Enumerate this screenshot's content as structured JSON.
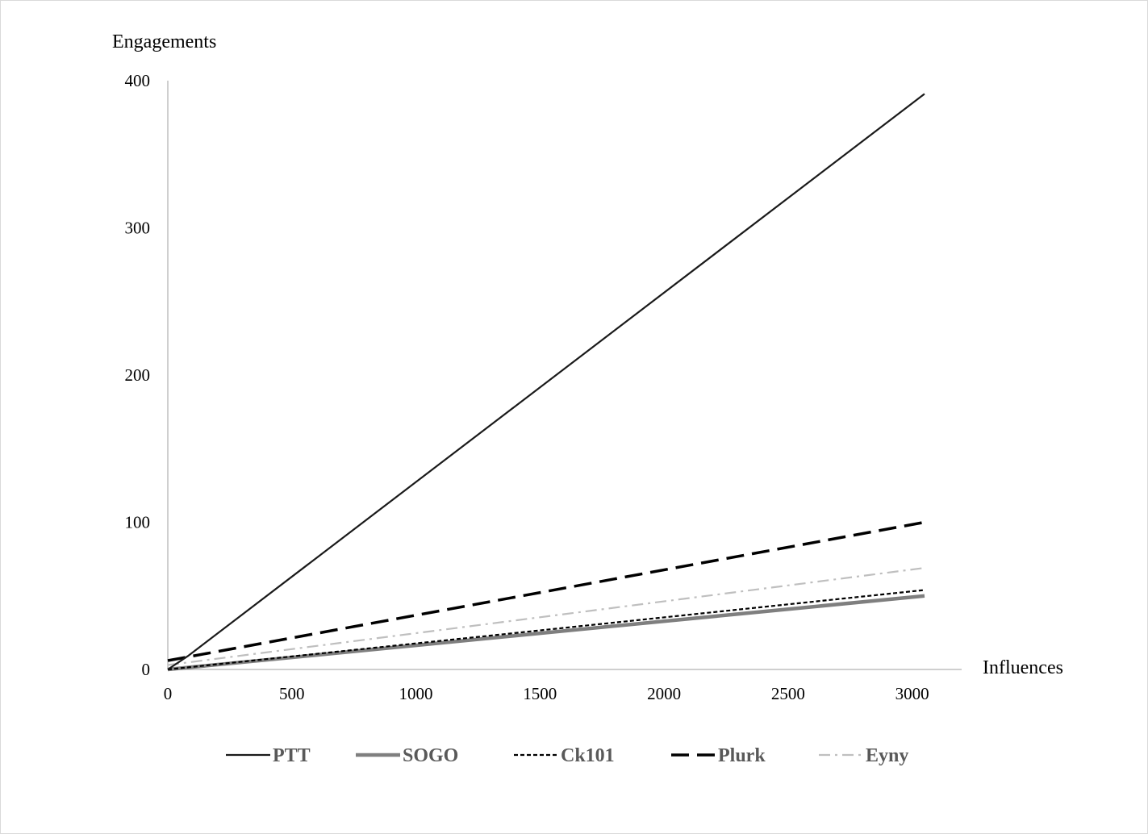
{
  "chart_data": {
    "type": "line",
    "title": "",
    "xlabel": "Influences",
    "ylabel": "Engagements",
    "xlim": [
      0,
      3200
    ],
    "ylim": [
      0,
      400
    ],
    "x_ticks": [
      "0",
      "500",
      "1000",
      "1500",
      "2000",
      "2500",
      "3000"
    ],
    "y_ticks": [
      "0",
      "100",
      "200",
      "300",
      "400"
    ],
    "grid": false,
    "legend_position": "bottom",
    "series": [
      {
        "name": "PTT",
        "color": "#1a1a1a",
        "style": "solid",
        "points": [
          [
            0,
            0
          ],
          [
            80,
            9
          ],
          [
            3050,
            391
          ]
        ]
      },
      {
        "name": "SOGO",
        "color": "#7f7f7f",
        "style": "thick",
        "points": [
          [
            0,
            0
          ],
          [
            3050,
            50
          ]
        ]
      },
      {
        "name": "Ck101",
        "color": "#000000",
        "style": "dotted",
        "points": [
          [
            0,
            0
          ],
          [
            3050,
            54
          ]
        ]
      },
      {
        "name": "Plurk",
        "color": "#000000",
        "style": "dashed",
        "points": [
          [
            0,
            6
          ],
          [
            3050,
            100
          ]
        ]
      },
      {
        "name": "Eyny",
        "color": "#bfbfbf",
        "style": "dashdot",
        "points": [
          [
            0,
            3
          ],
          [
            3050,
            69
          ]
        ]
      }
    ]
  }
}
